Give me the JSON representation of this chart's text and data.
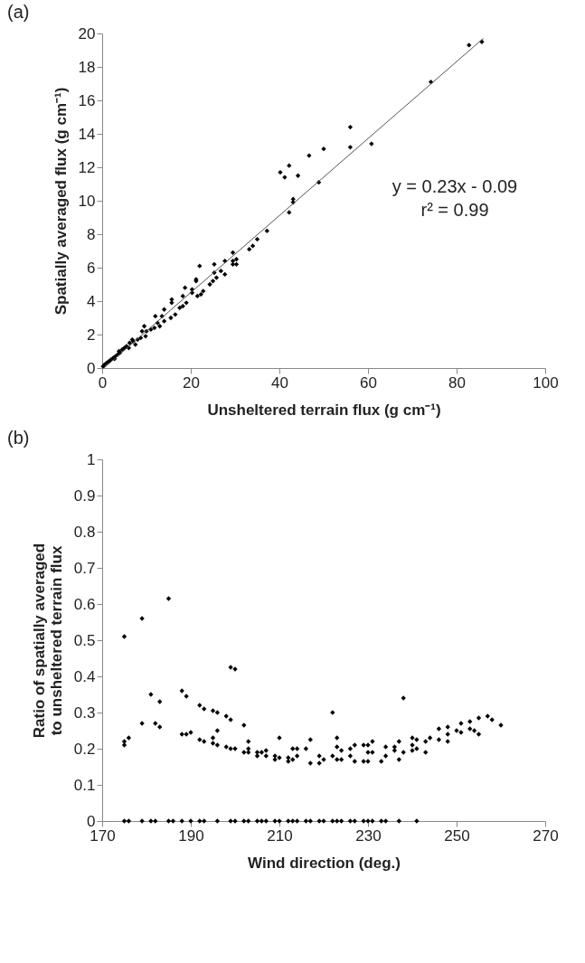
{
  "chart_data": [
    {
      "type": "scatter",
      "title": "(a)",
      "xlabel": "Unsheltered terrain flux (g cm⁻¹)",
      "ylabel": "Spatially averaged  flux (g cm⁻¹)",
      "marker": "diamond",
      "xlim": [
        0,
        100
      ],
      "ylim": [
        0,
        20
      ],
      "xticks": [
        0,
        20,
        40,
        60,
        80,
        100
      ],
      "yticks": [
        0,
        2,
        4,
        6,
        8,
        10,
        12,
        14,
        16,
        18,
        20
      ],
      "annotations": [
        "y = 0.23x - 0.09",
        "r² = 0.99"
      ],
      "series": [
        {
          "type": "scatter",
          "color": "#000000",
          "x": [
            40.2,
            41.2,
            42.2,
            44.2,
            46.7,
            50,
            56,
            56,
            60.8,
            48.9,
            42.2,
            43.1,
            43.1,
            74.2,
            82.8,
            85.7,
            37.2,
            35,
            34,
            33.2,
            29.5,
            29.5,
            30.3,
            30.3,
            29.5,
            27.7,
            27.7,
            26.8,
            25.3,
            25.3,
            25.8,
            24.3,
            25,
            22,
            21.2,
            21.2,
            20.3,
            20.3,
            22.3,
            21.5,
            22.8,
            18.7,
            18.2,
            19,
            18.2,
            17.5,
            15.7,
            15.7,
            14,
            15.5,
            14,
            13,
            12,
            11.8,
            11,
            10,
            9.5,
            9,
            8.7,
            8,
            7,
            6.2,
            5.5,
            5,
            4.5,
            4,
            3.5,
            3,
            2.5,
            2,
            1.5,
            1,
            0.5,
            0.2,
            6,
            7.5,
            9.8,
            12.5,
            13.5,
            16.5,
            3.8,
            6.8,
            2.8
          ],
          "values": [
            11.7,
            11.4,
            12.1,
            11.5,
            12.7,
            13.1,
            14.4,
            13.2,
            13.4,
            11.1,
            9.3,
            10.1,
            9.9,
            17.1,
            19.3,
            19.5,
            8.2,
            7.7,
            7.3,
            7.1,
            6.9,
            6.4,
            6.5,
            6.2,
            6.2,
            6.4,
            5.6,
            5.8,
            6.2,
            5.7,
            5.4,
            5.0,
            5.2,
            6.1,
            5.3,
            5.2,
            4.7,
            4.5,
            4.4,
            4.3,
            4.6,
            4.8,
            4.3,
            3.9,
            3.7,
            3.6,
            4.1,
            3.9,
            3.5,
            3.0,
            2.8,
            2.5,
            3.1,
            2.4,
            2.3,
            2.2,
            2.5,
            2.2,
            1.8,
            1.7,
            1.6,
            1.5,
            1.3,
            1.2,
            1.1,
            0.9,
            0.8,
            0.7,
            0.6,
            0.5,
            0.4,
            0.3,
            0.2,
            0.1,
            1.2,
            1.4,
            1.9,
            2.7,
            3.1,
            3.2,
            1.0,
            1.7,
            0.55
          ]
        },
        {
          "type": "line",
          "marker": "none",
          "color": "#555555",
          "x": [
            0.4,
            86
          ],
          "values": [
            0,
            19.7
          ]
        }
      ]
    },
    {
      "type": "scatter",
      "title": "(b)",
      "xlabel": "Wind direction (deg.)",
      "ylabel": "Ratio of spatially averaged  to unsheltered terrain flux",
      "marker": "diamond",
      "xlim": [
        170,
        270
      ],
      "ylim": [
        0,
        1
      ],
      "xticks": [
        170,
        190,
        210,
        230,
        250,
        270
      ],
      "yticks": [
        0,
        0.1,
        0.2,
        0.3,
        0.4,
        0.5,
        0.6,
        0.7,
        0.8,
        0.9,
        1
      ],
      "series": [
        {
          "type": "scatter",
          "color": "#000000",
          "x": [
            175,
            176,
            179,
            181,
            182,
            185,
            186,
            188,
            190,
            192,
            193,
            196,
            199,
            200,
            202,
            203,
            205,
            206,
            207,
            209,
            210,
            212,
            213,
            214,
            216,
            217,
            219,
            220,
            222,
            223,
            224,
            226,
            227,
            229,
            230,
            231,
            233,
            234,
            237,
            241,
            175,
            175,
            175,
            176,
            179,
            179,
            181,
            182,
            183,
            183,
            185,
            188,
            188,
            189,
            189,
            190,
            192,
            192,
            193,
            193,
            195,
            195,
            195,
            196,
            196,
            196,
            198,
            198,
            199,
            199,
            199,
            200,
            200,
            202,
            202,
            203,
            203,
            203,
            205,
            205,
            206,
            207,
            207,
            209,
            209,
            210,
            210,
            212,
            212,
            213,
            213,
            214,
            214,
            216,
            217,
            217,
            219,
            219,
            220,
            222,
            222,
            223,
            223,
            223,
            224,
            224,
            226,
            226,
            227,
            227,
            229,
            229,
            230,
            230,
            230,
            231,
            231,
            233,
            234,
            234,
            236,
            236,
            237,
            237,
            238,
            238,
            240,
            240,
            240,
            241,
            241,
            243,
            243,
            244,
            246,
            246,
            248,
            248,
            248,
            250,
            251,
            251,
            253,
            253,
            254,
            255,
            255,
            257,
            258,
            260
          ],
          "values": [
            0,
            0,
            0,
            0,
            0,
            0,
            0,
            0,
            0,
            0,
            0,
            0,
            0,
            0,
            0,
            0,
            0,
            0,
            0,
            0,
            0,
            0,
            0,
            0,
            0,
            0,
            0,
            0,
            0,
            0,
            0,
            0,
            0,
            0,
            0,
            0,
            0,
            0,
            0,
            0,
            0.51,
            0.22,
            0.21,
            0.23,
            0.56,
            0.27,
            0.35,
            0.27,
            0.26,
            0.33,
            0.615,
            0.36,
            0.24,
            0.345,
            0.24,
            0.245,
            0.32,
            0.225,
            0.31,
            0.22,
            0.305,
            0.23,
            0.215,
            0.3,
            0.25,
            0.21,
            0.29,
            0.205,
            0.425,
            0.28,
            0.2,
            0.42,
            0.2,
            0.265,
            0.19,
            0.22,
            0.2,
            0.19,
            0.19,
            0.18,
            0.19,
            0.195,
            0.18,
            0.18,
            0.17,
            0.23,
            0.175,
            0.175,
            0.165,
            0.2,
            0.17,
            0.2,
            0.18,
            0.2,
            0.225,
            0.16,
            0.18,
            0.16,
            0.17,
            0.3,
            0.18,
            0.23,
            0.205,
            0.17,
            0.195,
            0.17,
            0.2,
            0.18,
            0.21,
            0.165,
            0.21,
            0.165,
            0.21,
            0.19,
            0.165,
            0.22,
            0.19,
            0.165,
            0.205,
            0.18,
            0.205,
            0.195,
            0.22,
            0.17,
            0.34,
            0.19,
            0.23,
            0.21,
            0.195,
            0.225,
            0.2,
            0.22,
            0.19,
            0.23,
            0.255,
            0.225,
            0.26,
            0.24,
            0.22,
            0.25,
            0.27,
            0.245,
            0.275,
            0.255,
            0.25,
            0.285,
            0.24,
            0.29,
            0.28,
            0.265
          ]
        }
      ]
    }
  ]
}
